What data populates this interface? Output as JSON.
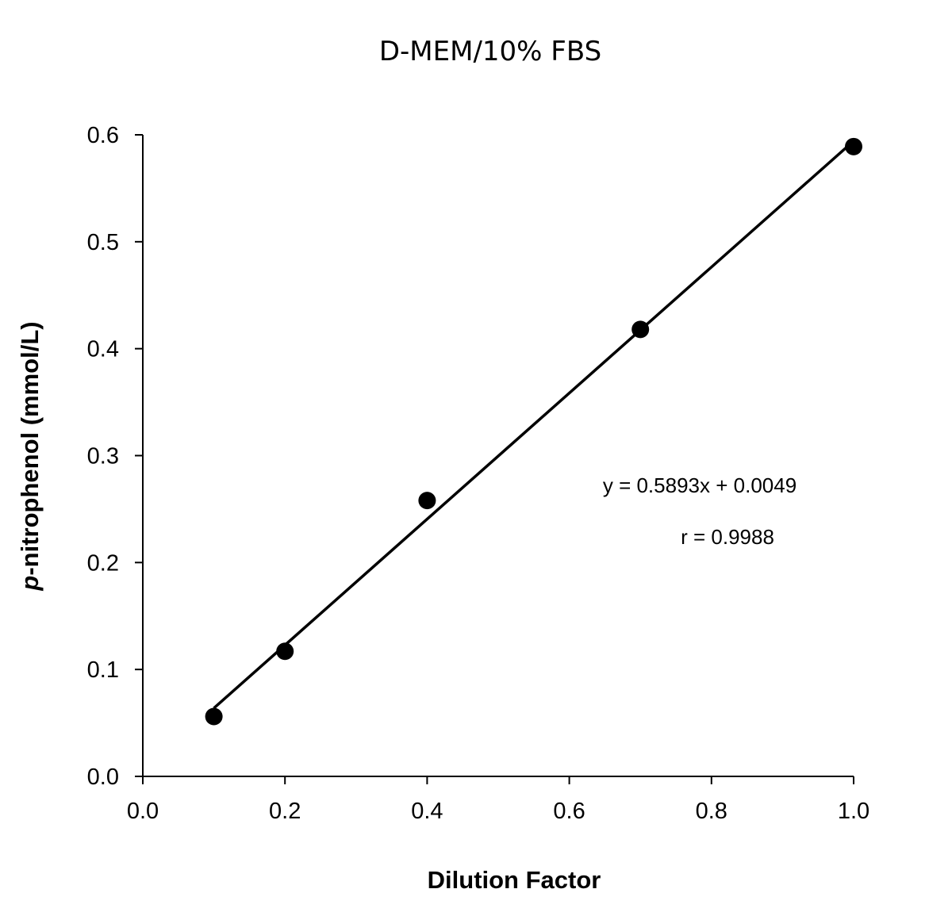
{
  "chart_data": {
    "type": "scatter",
    "title": "D-MEM/10% FBS",
    "xlabel": "Dilution Factor",
    "ylabel_italic": "p",
    "ylabel_rest": "-nitrophenol (mmol/L)",
    "xlim": [
      0,
      1.0
    ],
    "ylim": [
      0,
      0.6
    ],
    "xticks": [
      "0.0",
      "0.2",
      "0.4",
      "0.6",
      "0.8",
      "1.0"
    ],
    "yticks": [
      "0.0",
      "0.1",
      "0.2",
      "0.3",
      "0.4",
      "0.5",
      "0.6"
    ],
    "grid": false,
    "points": [
      {
        "x": 0.1,
        "y": 0.056
      },
      {
        "x": 0.2,
        "y": 0.117
      },
      {
        "x": 0.4,
        "y": 0.258
      },
      {
        "x": 0.7,
        "y": 0.418
      },
      {
        "x": 1.0,
        "y": 0.589
      }
    ],
    "fit": {
      "slope": 0.5893,
      "intercept": 0.0049,
      "x_range": [
        0.1,
        1.0
      ]
    },
    "annotations": {
      "equation": "y = 0.5893x + 0.0049",
      "r": "r = 0.9988"
    },
    "colors": {
      "points": "#000000",
      "line": "#000000"
    }
  }
}
